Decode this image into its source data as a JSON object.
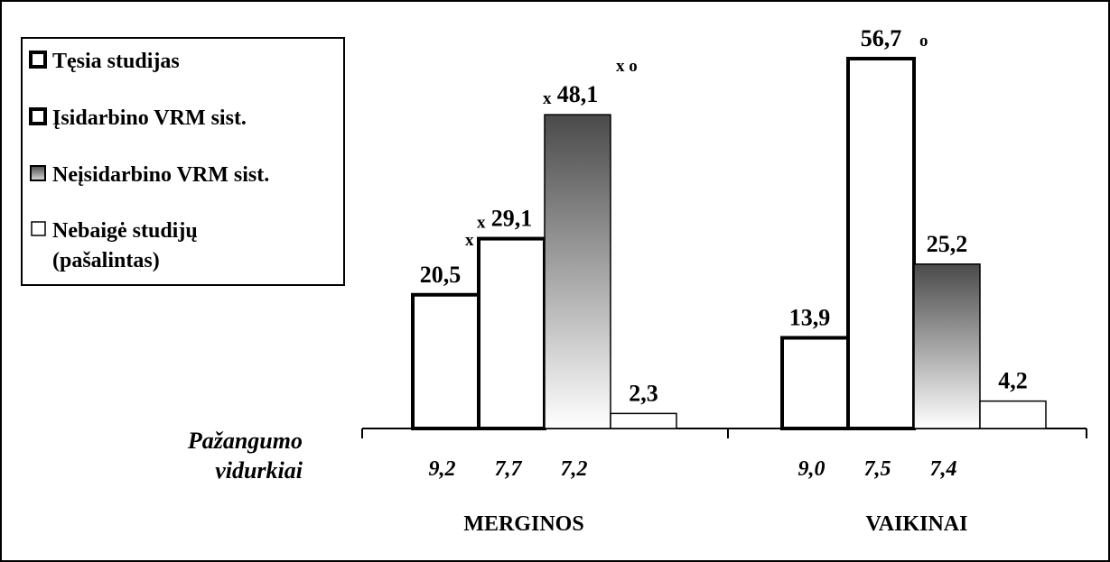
{
  "chart_data": {
    "type": "bar",
    "categories": [
      "MERGINOS",
      "VAIKINAI"
    ],
    "series": [
      {
        "name": "Tęsia studijas",
        "values": [
          20.5,
          13.9
        ],
        "labels": [
          "20,5",
          "13,9"
        ],
        "averages": [
          "9,2",
          "9,0"
        ],
        "marks": [
          "",
          ""
        ]
      },
      {
        "name": "Įsidarbino VRM sist.",
        "values": [
          29.1,
          56.7
        ],
        "labels": [
          "29,1",
          "56,7"
        ],
        "averages": [
          "7,7",
          "7,5"
        ],
        "marks": [
          "x",
          "o"
        ]
      },
      {
        "name": "Neįsidarbino VRM sist.",
        "values": [
          48.1,
          25.2
        ],
        "labels": [
          "48,1",
          "25,2"
        ],
        "averages": [
          "7,2",
          "7,4"
        ],
        "marks": [
          "x",
          ""
        ]
      },
      {
        "name": "Nebaigė studijų (pašalintas)",
        "values": [
          2.3,
          4.2
        ],
        "labels": [
          "2,3",
          "4,2"
        ],
        "averages": [
          "",
          ""
        ],
        "marks": [
          "",
          ""
        ]
      }
    ],
    "extra_marks": [
      {
        "text": "x o",
        "group": 0,
        "series": 2
      },
      {
        "text": "x",
        "group": 0,
        "series": 0
      }
    ],
    "ylabel": "",
    "xlabel": "",
    "ylim": [
      0,
      60
    ],
    "grid": false,
    "legend_position": "top-left",
    "averages_axis_label": [
      "Pažangumo",
      "vidurkiai"
    ],
    "colors": {
      "outline": "#000000",
      "gradient_top": "#4a4a4a",
      "gradient_bottom": "#ffffff",
      "background": "#ffffff"
    }
  },
  "legend": {
    "items": [
      {
        "label": "Tęsia studijas",
        "style": "thick-white"
      },
      {
        "label": "Įsidarbino VRM sist.",
        "style": "thick-white"
      },
      {
        "label": "Neįsidarbino VRM sist.",
        "style": "gradient"
      },
      {
        "label": "Nebaigė studijų",
        "label2": "(pašalintas)",
        "style": "thin-white"
      }
    ]
  }
}
